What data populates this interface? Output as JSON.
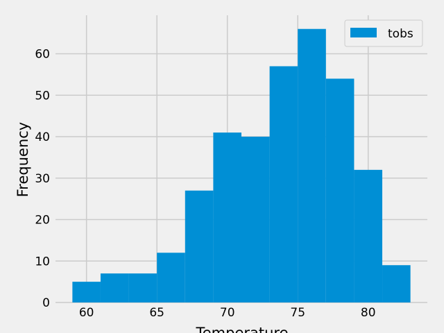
{
  "chart_data": {
    "type": "bar",
    "title": "",
    "xlabel": "Temperature",
    "ylabel": "Frequency",
    "xlim": [
      57.8,
      84.2
    ],
    "ylim": [
      0,
      69.3
    ],
    "x_ticks": [
      60,
      65,
      70,
      75,
      80
    ],
    "y_ticks": [
      0,
      10,
      20,
      30,
      40,
      50,
      60
    ],
    "bin_edges": [
      59,
      61,
      63,
      65,
      67,
      69,
      71,
      73,
      75,
      77,
      79,
      81,
      83
    ],
    "series": [
      {
        "name": "tobs",
        "values": [
          5,
          7,
          7,
          12,
          27,
          41,
          40,
          57,
          66,
          54,
          32,
          9
        ],
        "color": "#008fd5"
      }
    ],
    "grid": true,
    "legend_position": "top-right"
  }
}
